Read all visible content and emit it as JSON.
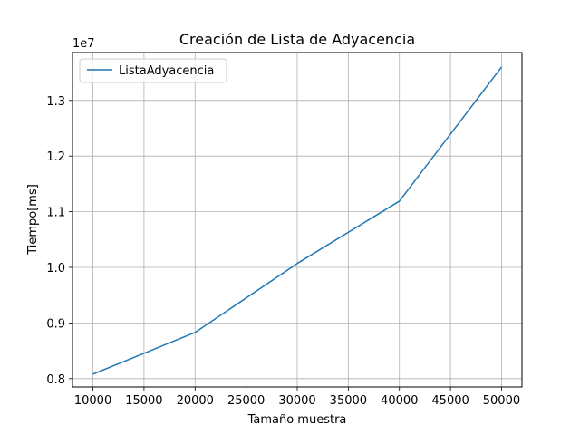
{
  "chart_data": {
    "type": "line",
    "title": "Creación de Lista de Adyacencia",
    "xlabel": "Tamaño muestra",
    "ylabel": "Tiempo[ms]",
    "y_offset_label": "1e7",
    "x_ticks": [
      10000,
      15000,
      20000,
      25000,
      30000,
      35000,
      40000,
      45000,
      50000
    ],
    "y_ticks": [
      0.8,
      0.9,
      1.0,
      1.1,
      1.2,
      1.3
    ],
    "y_scale": 10000000,
    "xlim": [
      8000,
      52000
    ],
    "ylim": [
      0.785,
      1.386
    ],
    "grid": true,
    "legend_position": "upper-left",
    "series": [
      {
        "name": "ListaAdyacencia",
        "color": "#1f77b4",
        "x": [
          10000,
          20000,
          30000,
          40000,
          50000
        ],
        "y": [
          0.808,
          0.883,
          1.007,
          1.119,
          1.36
        ]
      }
    ]
  }
}
